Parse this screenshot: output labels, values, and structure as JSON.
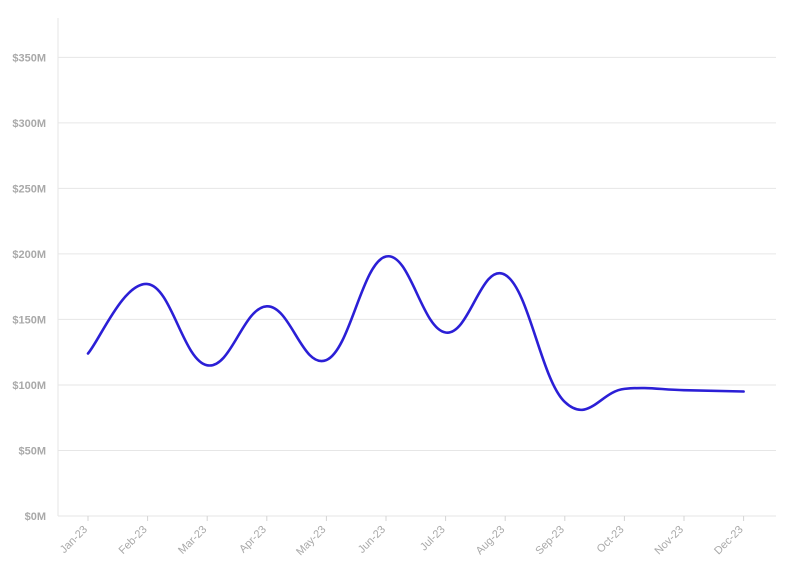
{
  "chart_data": {
    "type": "line",
    "title": "",
    "xlabel": "",
    "ylabel": "",
    "categories": [
      "Jan-23",
      "Feb-23",
      "Mar-23",
      "Apr-23",
      "May-23",
      "Jun-23",
      "Jul-23",
      "Aug-23",
      "Sep-23",
      "Oct-23",
      "Nov-23",
      "Dec-23"
    ],
    "series": [
      {
        "values": [
          124,
          177,
          115,
          160,
          119,
          198,
          140,
          184,
          87,
          97,
          96,
          95
        ]
      }
    ],
    "ylim": [
      0,
      380
    ],
    "yticks": [
      0,
      50,
      100,
      150,
      200,
      250,
      300,
      350
    ],
    "ytick_labels": [
      "$0M",
      "$50M",
      "$100M",
      "$150M",
      "$200M",
      "$250M",
      "$300M",
      "$350M"
    ],
    "grid": true,
    "legend": "none",
    "smooth": true
  },
  "colors": {
    "line": "#2b1fd6",
    "grid": "#e6e6e6",
    "tick_text": "#a9a9a9"
  }
}
